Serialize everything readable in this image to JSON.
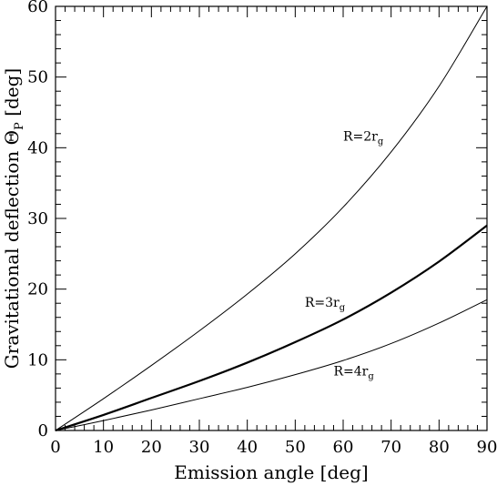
{
  "chart_data": {
    "type": "line",
    "xlabel": "Emission angle [deg]",
    "ylabel": {
      "main": "Gravitational deflection Θ",
      "sub": "P",
      "unit": " [deg]"
    },
    "xlim": [
      0,
      90
    ],
    "ylim": [
      0,
      60
    ],
    "xticks": [
      0,
      10,
      20,
      30,
      40,
      50,
      60,
      70,
      80,
      90
    ],
    "yticks": [
      0,
      10,
      20,
      30,
      40,
      50,
      60
    ],
    "x": [
      0,
      10,
      20,
      30,
      40,
      50,
      60,
      70,
      80,
      90
    ],
    "series": [
      {
        "label_main": "R=2r",
        "label_sub": "g",
        "label_at": [
          60,
          41
        ],
        "width": "thin",
        "values": [
          0,
          4.5,
          9.2,
          14.1,
          19.3,
          25.0,
          31.6,
          39.4,
          48.7,
          60.0
        ]
      },
      {
        "label_main": "R=3r",
        "label_sub": "g",
        "label_at": [
          52,
          17.5
        ],
        "width": "thick",
        "values": [
          0,
          2.2,
          4.6,
          7.0,
          9.6,
          12.5,
          15.7,
          19.5,
          23.9,
          29.0
        ]
      },
      {
        "label_main": "R=4r",
        "label_sub": "g",
        "label_at": [
          58,
          7.8
        ],
        "width": "thin",
        "values": [
          0,
          1.4,
          2.9,
          4.5,
          6.1,
          7.9,
          9.9,
          12.3,
          15.2,
          18.5
        ]
      }
    ]
  }
}
